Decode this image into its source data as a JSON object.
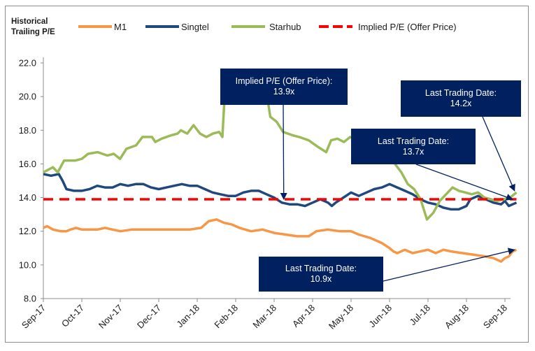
{
  "chart_data": {
    "type": "line",
    "title": "Historical Trailing P/E",
    "xlabel": "",
    "ylabel": "",
    "ylim": [
      8.0,
      22.0
    ],
    "yticks": [
      "8.0",
      "10.0",
      "12.0",
      "14.0",
      "16.0",
      "18.0",
      "20.0",
      "22.0"
    ],
    "ytick_values": [
      8,
      10,
      12,
      14,
      16,
      18,
      20,
      22
    ],
    "categories": [
      "Sep-17",
      "Oct-17",
      "Nov-17",
      "Dec-17",
      "Jan-18",
      "Feb-18",
      "Mar-18",
      "Apr-18",
      "May-18",
      "Jun-18",
      "Jul-18",
      "Aug-18",
      "Sep-18"
    ],
    "x_note": "x values are months elapsed since Sep-17",
    "grid": false,
    "legend_position": "top",
    "series": [
      {
        "name": "M1",
        "color": "#f79646",
        "points": [
          [
            0,
            12.2
          ],
          [
            0.1,
            12.3
          ],
          [
            0.25,
            12.1
          ],
          [
            0.45,
            12.0
          ],
          [
            0.6,
            12.0
          ],
          [
            0.7,
            12.1
          ],
          [
            0.85,
            12.2
          ],
          [
            1.0,
            12.1
          ],
          [
            1.2,
            12.1
          ],
          [
            1.4,
            12.1
          ],
          [
            1.6,
            12.2
          ],
          [
            1.8,
            12.1
          ],
          [
            2.0,
            12.0
          ],
          [
            2.3,
            12.1
          ],
          [
            2.6,
            12.1
          ],
          [
            2.9,
            12.1
          ],
          [
            3.2,
            12.1
          ],
          [
            3.5,
            12.1
          ],
          [
            3.8,
            12.1
          ],
          [
            4.1,
            12.2
          ],
          [
            4.3,
            12.6
          ],
          [
            4.5,
            12.7
          ],
          [
            4.7,
            12.5
          ],
          [
            4.9,
            12.4
          ],
          [
            5.1,
            12.2
          ],
          [
            5.4,
            12.0
          ],
          [
            5.7,
            12.1
          ],
          [
            6.0,
            11.9
          ],
          [
            6.3,
            11.8
          ],
          [
            6.6,
            11.7
          ],
          [
            6.9,
            11.7
          ],
          [
            7.1,
            12.0
          ],
          [
            7.4,
            12.1
          ],
          [
            7.7,
            12.0
          ],
          [
            8.0,
            12.0
          ],
          [
            8.2,
            11.8
          ],
          [
            8.5,
            11.6
          ],
          [
            8.8,
            11.3
          ],
          [
            9.0,
            11.0
          ],
          [
            9.1,
            10.8
          ],
          [
            9.2,
            10.7
          ],
          [
            9.4,
            10.9
          ],
          [
            9.6,
            10.7
          ],
          [
            9.8,
            10.8
          ],
          [
            10.0,
            10.9
          ],
          [
            10.2,
            10.7
          ],
          [
            10.4,
            10.9
          ],
          [
            10.6,
            10.8
          ],
          [
            10.9,
            10.7
          ],
          [
            11.2,
            10.6
          ],
          [
            11.5,
            10.5
          ],
          [
            11.7,
            10.4
          ],
          [
            11.9,
            10.2
          ],
          [
            12.0,
            10.4
          ],
          [
            12.1,
            10.5
          ],
          [
            12.2,
            10.8
          ],
          [
            12.3,
            10.9
          ]
        ]
      },
      {
        "name": "Singtel",
        "color": "#1f497d",
        "points": [
          [
            0,
            15.4
          ],
          [
            0.2,
            15.3
          ],
          [
            0.4,
            15.4
          ],
          [
            0.5,
            15.0
          ],
          [
            0.6,
            14.5
          ],
          [
            0.8,
            14.4
          ],
          [
            1.0,
            14.4
          ],
          [
            1.2,
            14.5
          ],
          [
            1.4,
            14.7
          ],
          [
            1.6,
            14.6
          ],
          [
            1.8,
            14.6
          ],
          [
            2.0,
            14.8
          ],
          [
            2.2,
            14.7
          ],
          [
            2.4,
            14.8
          ],
          [
            2.6,
            14.8
          ],
          [
            2.8,
            14.6
          ],
          [
            3.0,
            14.5
          ],
          [
            3.2,
            14.6
          ],
          [
            3.4,
            14.7
          ],
          [
            3.6,
            14.8
          ],
          [
            3.8,
            14.7
          ],
          [
            4.0,
            14.7
          ],
          [
            4.2,
            14.5
          ],
          [
            4.4,
            14.3
          ],
          [
            4.6,
            14.2
          ],
          [
            4.8,
            14.1
          ],
          [
            5.0,
            14.1
          ],
          [
            5.2,
            14.3
          ],
          [
            5.4,
            14.4
          ],
          [
            5.6,
            14.4
          ],
          [
            5.8,
            14.2
          ],
          [
            6.0,
            14.0
          ],
          [
            6.2,
            13.7
          ],
          [
            6.4,
            13.6
          ],
          [
            6.6,
            13.6
          ],
          [
            6.8,
            13.5
          ],
          [
            7.0,
            13.7
          ],
          [
            7.2,
            13.9
          ],
          [
            7.4,
            13.7
          ],
          [
            7.5,
            13.5
          ],
          [
            7.6,
            13.7
          ],
          [
            7.8,
            14.0
          ],
          [
            8.0,
            14.3
          ],
          [
            8.2,
            14.1
          ],
          [
            8.4,
            14.3
          ],
          [
            8.6,
            14.5
          ],
          [
            8.8,
            14.6
          ],
          [
            9.0,
            14.8
          ],
          [
            9.2,
            14.6
          ],
          [
            9.4,
            14.4
          ],
          [
            9.6,
            14.2
          ],
          [
            9.8,
            13.9
          ],
          [
            10.0,
            13.7
          ],
          [
            10.2,
            13.6
          ],
          [
            10.4,
            13.4
          ],
          [
            10.6,
            13.3
          ],
          [
            10.8,
            13.3
          ],
          [
            11.0,
            13.5
          ],
          [
            11.1,
            13.9
          ],
          [
            11.3,
            14.1
          ],
          [
            11.5,
            13.9
          ],
          [
            11.7,
            13.7
          ],
          [
            11.9,
            13.6
          ],
          [
            12.0,
            13.8
          ],
          [
            12.1,
            13.5
          ],
          [
            12.2,
            13.6
          ],
          [
            12.3,
            13.7
          ]
        ]
      },
      {
        "name": "Starhub",
        "color": "#9bbb59",
        "points": [
          [
            0,
            15.5
          ],
          [
            0.3,
            15.8
          ],
          [
            0.45,
            15.5
          ],
          [
            0.65,
            16.2
          ],
          [
            1.0,
            16.2
          ],
          [
            1.2,
            16.3
          ],
          [
            1.4,
            16.6
          ],
          [
            1.7,
            16.7
          ],
          [
            2.0,
            16.5
          ],
          [
            2.2,
            16.6
          ],
          [
            2.4,
            16.3
          ],
          [
            2.6,
            16.9
          ],
          [
            2.9,
            17.1
          ],
          [
            3.1,
            17.6
          ],
          [
            3.4,
            17.6
          ],
          [
            3.5,
            17.3
          ],
          [
            3.7,
            17.5
          ],
          [
            4.0,
            17.7
          ],
          [
            4.2,
            17.8
          ],
          [
            4.3,
            18.0
          ],
          [
            4.5,
            17.8
          ],
          [
            4.7,
            18.3
          ],
          [
            4.9,
            17.8
          ],
          [
            5.1,
            17.6
          ],
          [
            5.3,
            17.8
          ],
          [
            5.5,
            17.9
          ],
          [
            5.6,
            17.6
          ],
          [
            5.7,
            21.0
          ],
          [
            5.9,
            21.1
          ],
          [
            6.1,
            21.3
          ],
          [
            6.3,
            21.4
          ],
          [
            6.45,
            21.6
          ],
          [
            6.6,
            21.2
          ],
          [
            6.8,
            20.5
          ],
          [
            7.0,
            20.0
          ],
          [
            7.1,
            18.8
          ],
          [
            7.3,
            18.5
          ],
          [
            7.5,
            17.9
          ],
          [
            7.8,
            17.7
          ],
          [
            8.0,
            17.6
          ],
          [
            8.3,
            17.4
          ],
          [
            8.6,
            17.0
          ],
          [
            8.85,
            16.7
          ],
          [
            9.0,
            17.4
          ],
          [
            9.2,
            17.5
          ],
          [
            9.4,
            17.3
          ],
          [
            9.6,
            17.6
          ],
          [
            9.8,
            17.4
          ],
          [
            10.1,
            17.3
          ],
          [
            10.3,
            17.1
          ],
          [
            10.5,
            16.6
          ],
          [
            10.8,
            16.7
          ],
          [
            11.0,
            16.0
          ],
          [
            11.2,
            15.5
          ],
          [
            11.4,
            14.8
          ],
          [
            11.6,
            14.5
          ],
          [
            11.8,
            13.9
          ],
          [
            12.0,
            12.7
          ],
          [
            12.2,
            13.1
          ],
          [
            12.4,
            13.8
          ],
          [
            12.6,
            14.2
          ],
          [
            12.8,
            14.6
          ],
          [
            13.0,
            14.4
          ],
          [
            13.2,
            14.3
          ],
          [
            13.4,
            14.2
          ],
          [
            13.6,
            14.3
          ],
          [
            13.8,
            14.0
          ],
          [
            14.0,
            13.9
          ],
          [
            14.2,
            13.8
          ],
          [
            14.4,
            13.9
          ],
          [
            14.6,
            14.0
          ],
          [
            14.8,
            14.3
          ]
        ]
      },
      {
        "name": "Implied P/E (Offer Price)",
        "color": "#ff0000",
        "style": "dashed",
        "points": [
          [
            0,
            13.9
          ],
          [
            12.3,
            13.9
          ]
        ]
      }
    ],
    "annotations": [
      {
        "text_line1": "Implied P/E (Offer Price):",
        "text_line2": "13.9x",
        "target": [
          6.25,
          13.9
        ]
      },
      {
        "text_line1": "Last Trading Date:",
        "text_line2": "14.2x",
        "target": [
          12.25,
          14.4
        ]
      },
      {
        "text_line1": "Last Trading Date:",
        "text_line2": "13.7x",
        "target": [
          12.2,
          13.9
        ]
      },
      {
        "text_line1": "Last Trading Date:",
        "text_line2": "10.9x",
        "target": [
          12.25,
          10.9
        ]
      }
    ]
  }
}
